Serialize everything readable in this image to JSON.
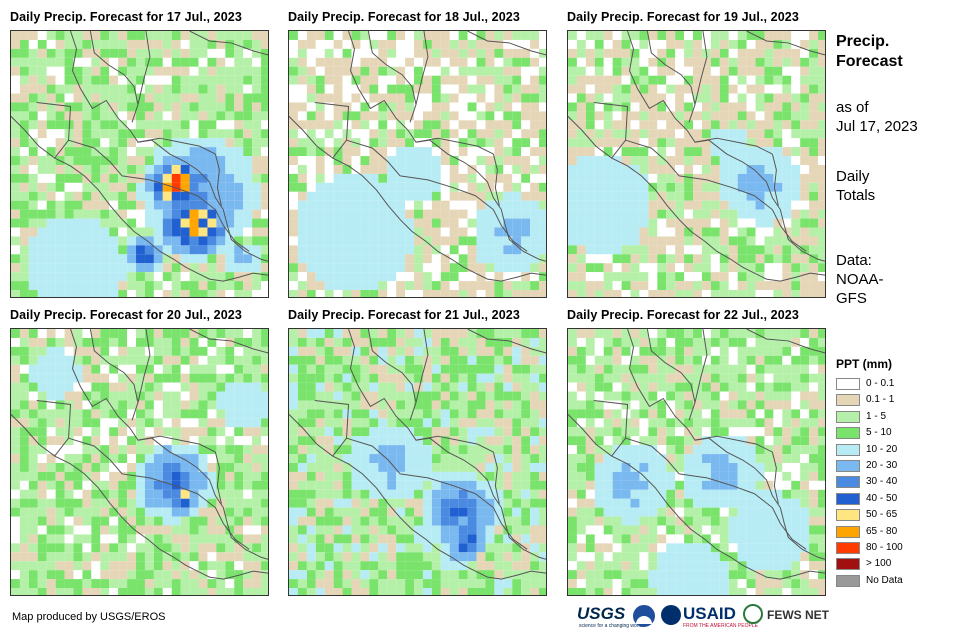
{
  "panels": [
    {
      "title": "Daily Precip. Forecast for 17 Jul., 2023",
      "day": "17 Jul., 2023"
    },
    {
      "title": "Daily Precip. Forecast for 18 Jul., 2023",
      "day": "18 Jul., 2023"
    },
    {
      "title": "Daily Precip. Forecast for 19 Jul., 2023",
      "day": "19 Jul., 2023"
    },
    {
      "title": "Daily Precip. Forecast for 20 Jul., 2023",
      "day": "20 Jul., 2023"
    },
    {
      "title": "Daily Precip. Forecast for 21 Jul., 2023",
      "day": "21 Jul., 2023"
    },
    {
      "title": "Daily Precip. Forecast for 22 Jul., 2023",
      "day": "22 Jul., 2023"
    }
  ],
  "sidebar": {
    "title_line1": "Precip.",
    "title_line2": "Forecast",
    "asof_line1": "as of",
    "asof_line2": "Jul 17, 2023",
    "totals_line1": "Daily",
    "totals_line2": "Totals",
    "data_line1": "Data:",
    "data_line2": "NOAA-",
    "data_line3": "GFS"
  },
  "legend": {
    "title": "PPT (mm)",
    "items": [
      {
        "label": "0 - 0.1",
        "color": "#ffffff"
      },
      {
        "label": "0.1 - 1",
        "color": "#e6d6b8"
      },
      {
        "label": "1 - 5",
        "color": "#b5f0a8"
      },
      {
        "label": "5 - 10",
        "color": "#7ae36c"
      },
      {
        "label": "10 - 20",
        "color": "#b8ecf5"
      },
      {
        "label": "20 - 30",
        "color": "#7ab8f0"
      },
      {
        "label": "30 - 40",
        "color": "#4a8ae0"
      },
      {
        "label": "40 - 50",
        "color": "#2060d0"
      },
      {
        "label": "50 - 65",
        "color": "#ffe680"
      },
      {
        "label": "65 - 80",
        "color": "#ffa500"
      },
      {
        "label": "80 - 100",
        "color": "#ff3b00"
      },
      {
        "label": "> 100",
        "color": "#a01010"
      },
      {
        "label": "No Data",
        "color": "#999999"
      }
    ]
  },
  "footer": {
    "credit": "Map produced by USGS/EROS",
    "logo_usgs": "USGS",
    "logo_usgs_tagline": "science for a changing world",
    "logo_usaid": "USAID",
    "logo_usaid_tagline": "FROM THE AMERICAN PEOPLE",
    "logo_fews": "FEWS NET"
  }
}
